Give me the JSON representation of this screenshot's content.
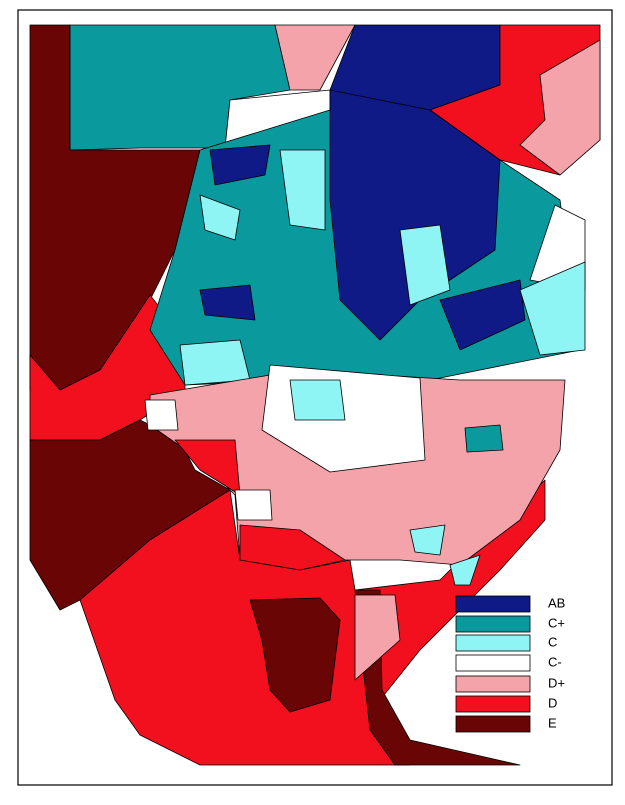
{
  "legend": {
    "items": [
      {
        "label": "AB",
        "color": "#0f1a86"
      },
      {
        "label": "C+",
        "color": "#0a9a9e"
      },
      {
        "label": "C",
        "color": "#8ef4f4"
      },
      {
        "label": "C-",
        "color": "#ffffff"
      },
      {
        "label": "D+",
        "color": "#f5a3ab"
      },
      {
        "label": "D",
        "color": "#f2101e"
      },
      {
        "label": "E",
        "color": "#6a0505"
      }
    ]
  }
}
